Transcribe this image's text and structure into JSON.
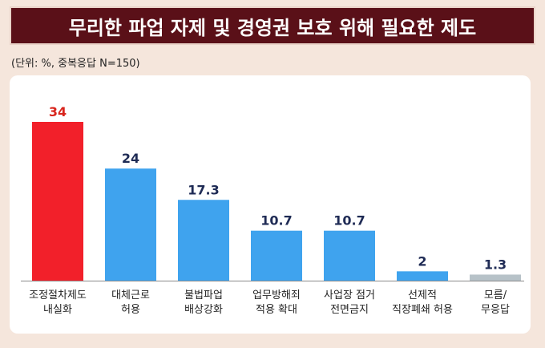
{
  "title": "무리한 파업 자제 및 경영권 보호 위해 필요한 제도",
  "subtitle": "(단위: %, 중복응답 N=150)",
  "colors": {
    "highlight_bar": "#f2202a",
    "default_bar": "#3fa3ee",
    "muted_bar": "#b7c2c8",
    "highlight_value": "#d8251d",
    "default_value": "#1f2b55"
  },
  "chart_data": {
    "type": "bar",
    "title": "무리한 파업 자제 및 경영권 보호 위해 필요한 제도",
    "subtitle": "(단위: %, 중복응답 N=150)",
    "xlabel": "",
    "ylabel": "",
    "unit": "%",
    "grid": false,
    "ylim": [
      0,
      34
    ],
    "categories": [
      [
        "조정절차제도",
        "내실화"
      ],
      [
        "대체근로",
        "허용"
      ],
      [
        "불법파업",
        "배상강화"
      ],
      [
        "업무방해죄",
        "적용 확대"
      ],
      [
        "사업장 점거",
        "전면금지"
      ],
      [
        "선제적",
        "직장폐쇄 허용"
      ],
      [
        "모름/",
        "무응답"
      ]
    ],
    "values": [
      34,
      24,
      17.3,
      10.7,
      10.7,
      2,
      1.3
    ],
    "value_labels": [
      "34",
      "24",
      "17.3",
      "10.7",
      "10.7",
      "2",
      "1.3"
    ],
    "bar_colors": [
      "highlight",
      "default",
      "default",
      "default",
      "default",
      "default",
      "muted"
    ]
  }
}
